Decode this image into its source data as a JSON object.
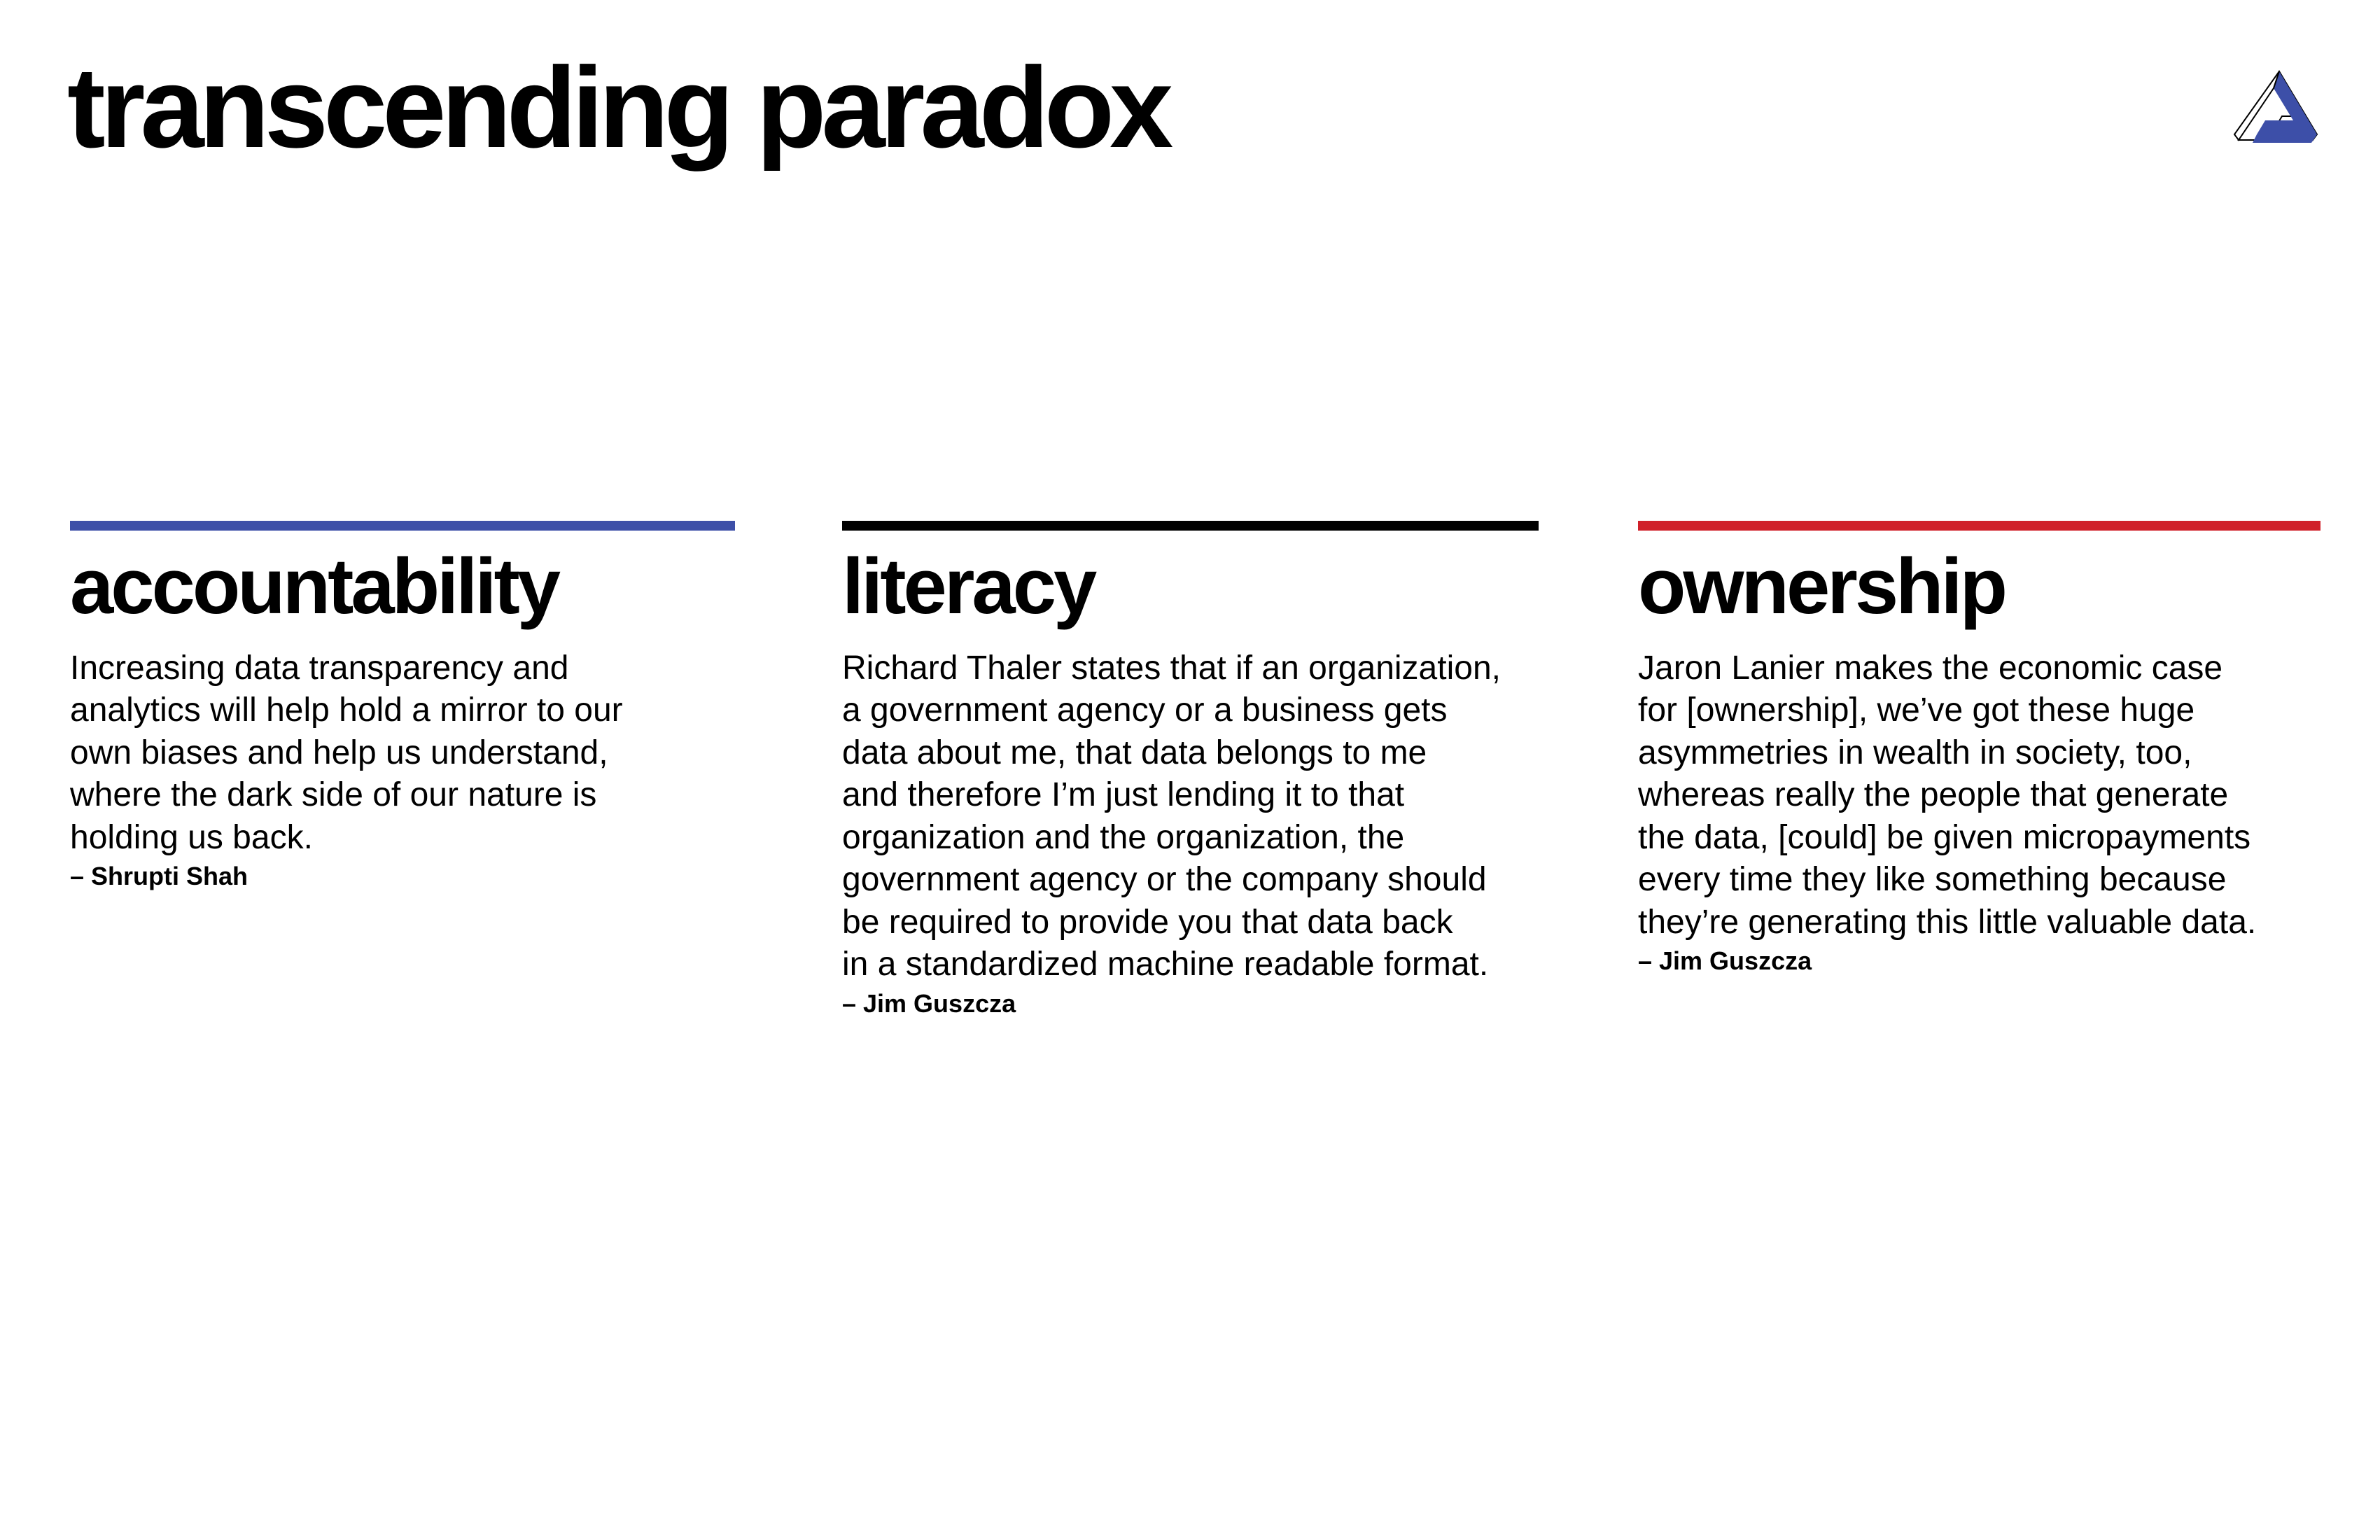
{
  "title": "transcending paradox",
  "logo": {
    "icon": "triangle-logo-icon",
    "colors": {
      "outline": "#000000",
      "fill": "#3d4fa8"
    }
  },
  "columns": [
    {
      "heading": "accountability",
      "rule_color": "#3d4fa8",
      "lines": [
        "Increasing data transparency and",
        "analytics will help hold a mirror to our",
        "own biases and help us understand,",
        "where the dark side of our nature is",
        "holding us back."
      ],
      "attribution": "– Shrupti Shah"
    },
    {
      "heading": "literacy",
      "rule_color": "#000000",
      "lines": [
        "Richard Thaler states that if an organization,",
        "a government agency or a business gets",
        "data about me, that data belongs to me",
        "and therefore I’m just lending it to that",
        "organization and the organization, the",
        "government agency or the company should",
        "be required to provide you that data back",
        "in a standardized machine readable format."
      ],
      "attribution": "– Jim Guszcza"
    },
    {
      "heading": "ownership",
      "rule_color": "#d0202a",
      "lines": [
        "Jaron Lanier makes the economic case",
        "for [ownership], we’ve got these huge",
        "asymmetries in wealth in society, too,",
        "whereas really the people that generate",
        "the data, [could] be given micropayments",
        "every time they like something because",
        "they’re generating this little valuable data."
      ],
      "attribution": "– Jim Guszcza"
    }
  ]
}
